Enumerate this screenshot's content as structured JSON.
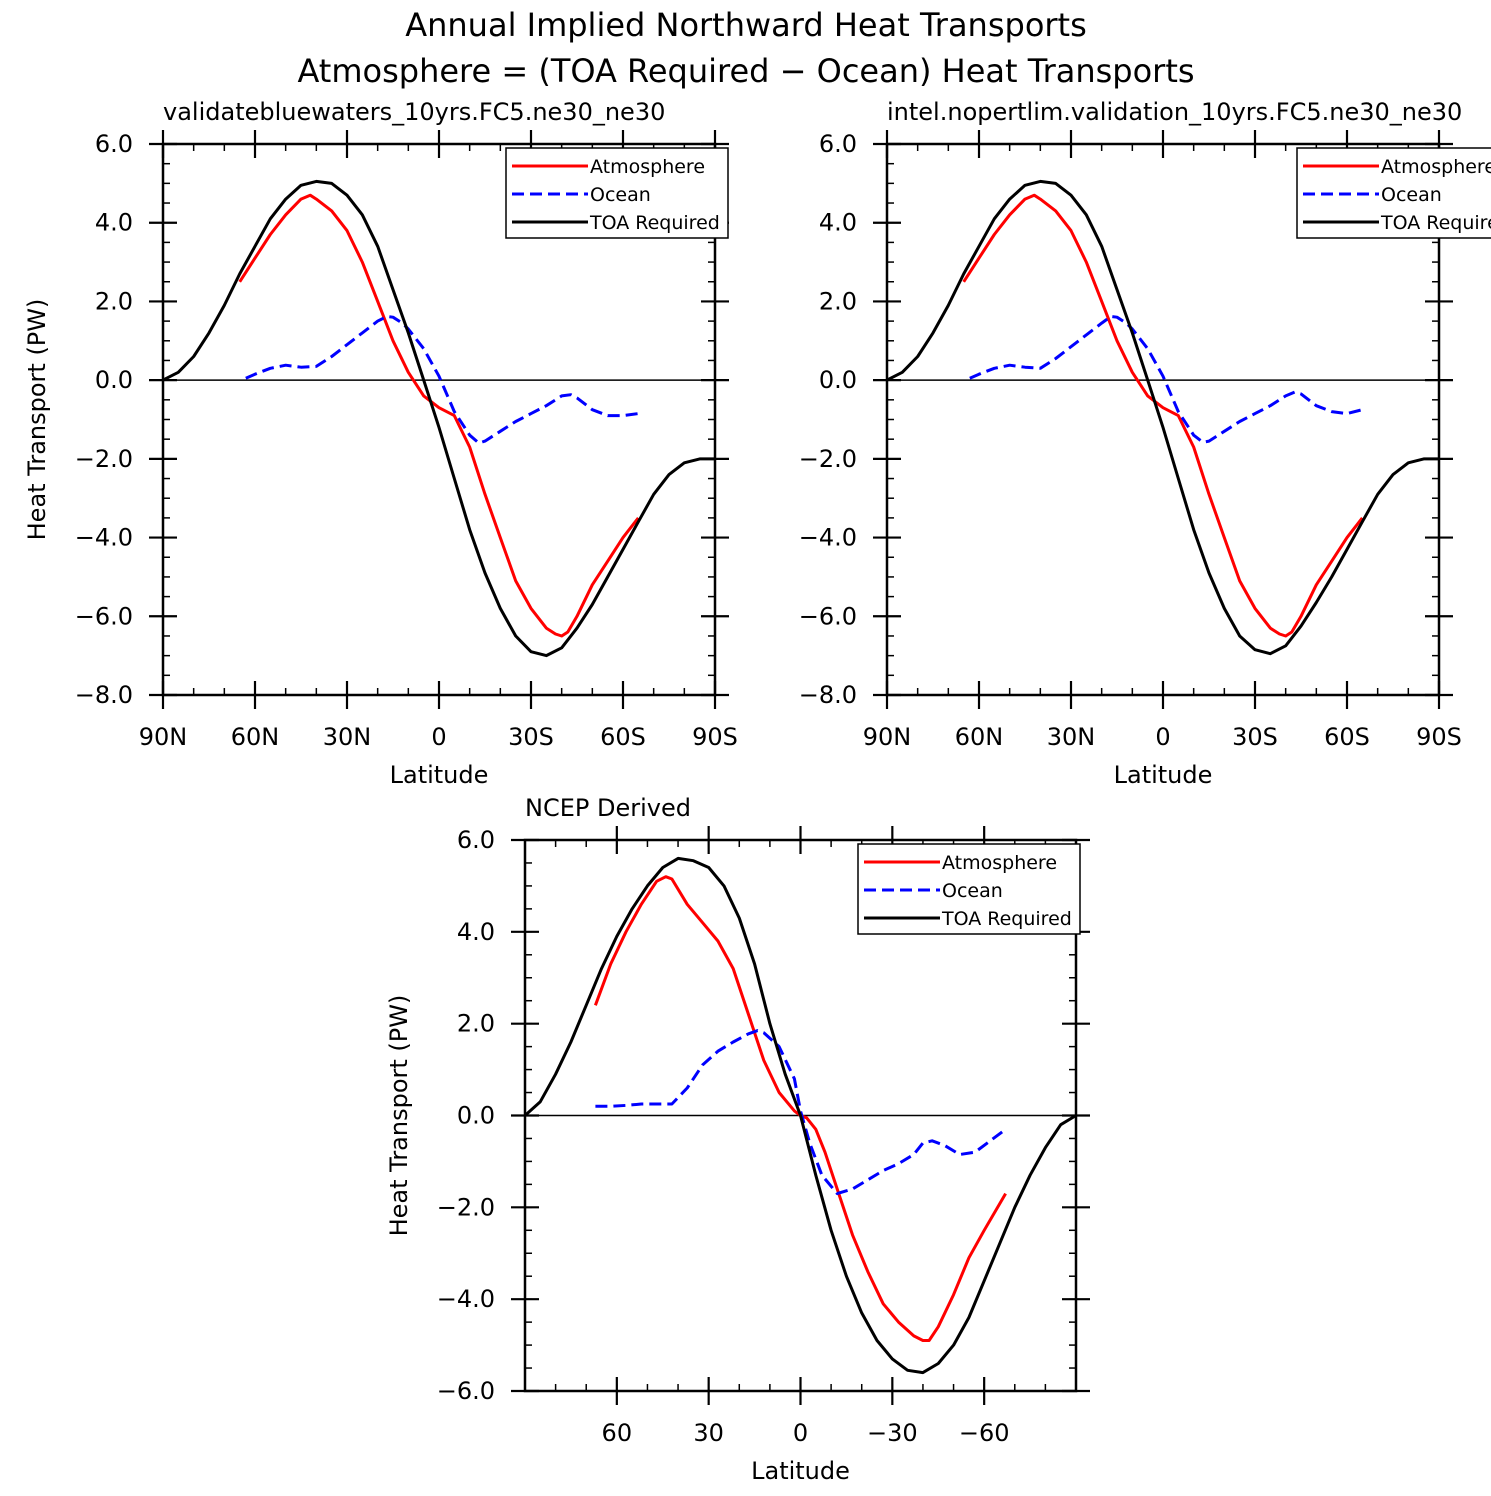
{
  "figure": {
    "title_line1": "Annual Implied Northward Heat Transports",
    "title_line2": "Atmosphere = (TOA Required − Ocean) Heat Transports"
  },
  "colors": {
    "atmosphere": "#ff0000",
    "ocean": "#0000ff",
    "toa": "#000000"
  },
  "chart_data": [
    {
      "type": "line",
      "title": "validatebluewaters_10yrs.FC5.ne30_ne30",
      "xlabel": "Latitude",
      "ylabel": "Heat Transport (PW)",
      "xlim": [
        90,
        -90
      ],
      "ylim": [
        -8,
        6
      ],
      "xticks": [
        90,
        60,
        30,
        0,
        -30,
        -60,
        -90
      ],
      "xtick_labels": [
        "90N",
        "60N",
        "30N",
        "0",
        "30S",
        "60S",
        "90S"
      ],
      "yticks": [
        6,
        4,
        2,
        0,
        -2,
        -4,
        -6,
        -8
      ],
      "ytick_labels": [
        "6.0",
        "4.0",
        "2.0",
        "0.0",
        "−2.0",
        "−4.0",
        "−6.0",
        "−8.0"
      ],
      "legend": [
        "Atmosphere",
        "Ocean",
        "TOA Required"
      ],
      "series": [
        {
          "name": "Atmosphere",
          "x": [
            65,
            60,
            55,
            50,
            45,
            42,
            40,
            35,
            30,
            25,
            20,
            15,
            10,
            5,
            0,
            -5,
            -10,
            -15,
            -20,
            -25,
            -30,
            -35,
            -38,
            -40,
            -42,
            -45,
            -50,
            -55,
            -60,
            -65
          ],
          "y": [
            2.5,
            3.1,
            3.7,
            4.2,
            4.6,
            4.7,
            4.6,
            4.3,
            3.8,
            3.0,
            2.0,
            1.0,
            0.2,
            -0.4,
            -0.7,
            -0.9,
            -1.7,
            -2.9,
            -4.0,
            -5.1,
            -5.8,
            -6.3,
            -6.45,
            -6.5,
            -6.4,
            -6.0,
            -5.2,
            -4.6,
            -4.0,
            -3.5
          ]
        },
        {
          "name": "Ocean",
          "x": [
            63,
            60,
            55,
            50,
            45,
            40,
            35,
            30,
            25,
            20,
            17,
            15,
            12,
            10,
            5,
            0,
            -5,
            -10,
            -13,
            -15,
            -20,
            -25,
            -30,
            -35,
            -40,
            -43,
            -45,
            -50,
            -55,
            -60,
            -65
          ],
          "y": [
            0.05,
            0.15,
            0.3,
            0.38,
            0.33,
            0.35,
            0.6,
            0.9,
            1.2,
            1.5,
            1.62,
            1.6,
            1.45,
            1.3,
            0.8,
            0.1,
            -0.8,
            -1.4,
            -1.6,
            -1.55,
            -1.3,
            -1.05,
            -0.85,
            -0.65,
            -0.4,
            -0.37,
            -0.45,
            -0.75,
            -0.9,
            -0.9,
            -0.85
          ]
        },
        {
          "name": "TOA Required",
          "x": [
            90,
            85,
            80,
            75,
            70,
            65,
            60,
            55,
            50,
            45,
            40,
            35,
            30,
            25,
            20,
            15,
            10,
            5,
            0,
            -5,
            -10,
            -15,
            -20,
            -25,
            -30,
            -35,
            -40,
            -45,
            -50,
            -55,
            -60,
            -65,
            -70,
            -75,
            -80,
            -85,
            -90
          ],
          "y": [
            0.0,
            0.2,
            0.6,
            1.2,
            1.9,
            2.7,
            3.4,
            4.1,
            4.6,
            4.95,
            5.05,
            5.0,
            4.7,
            4.2,
            3.4,
            2.3,
            1.2,
            0.0,
            -1.2,
            -2.5,
            -3.8,
            -4.9,
            -5.8,
            -6.5,
            -6.9,
            -7.0,
            -6.8,
            -6.3,
            -5.7,
            -5.0,
            -4.3,
            -3.6,
            -2.9,
            -2.4,
            -2.1,
            -2.0,
            -2.0
          ]
        }
      ]
    },
    {
      "type": "line",
      "title": "intel.nopertlim.validation_10yrs.FC5.ne30_ne30",
      "xlabel": "Latitude",
      "ylabel": "",
      "xlim": [
        90,
        -90
      ],
      "ylim": [
        -8,
        6
      ],
      "xticks": [
        90,
        60,
        30,
        0,
        -30,
        -60,
        -90
      ],
      "xtick_labels": [
        "90N",
        "60N",
        "30N",
        "0",
        "30S",
        "60S",
        "90S"
      ],
      "yticks": [
        6,
        4,
        2,
        0,
        -2,
        -4,
        -6,
        -8
      ],
      "ytick_labels": [
        "6.0",
        "4.0",
        "2.0",
        "0.0",
        "−2.0",
        "−4.0",
        "−6.0",
        "−8.0"
      ],
      "legend": [
        "Atmosphere",
        "Ocean",
        "TOA Required"
      ],
      "series": [
        {
          "name": "Atmosphere",
          "x": [
            65,
            60,
            55,
            50,
            45,
            42,
            40,
            35,
            30,
            25,
            20,
            15,
            10,
            5,
            0,
            -5,
            -10,
            -15,
            -20,
            -25,
            -30,
            -35,
            -38,
            -40,
            -42,
            -45,
            -50,
            -55,
            -60,
            -65
          ],
          "y": [
            2.5,
            3.1,
            3.7,
            4.2,
            4.6,
            4.7,
            4.6,
            4.3,
            3.8,
            3.0,
            2.0,
            1.0,
            0.2,
            -0.4,
            -0.7,
            -0.9,
            -1.7,
            -2.9,
            -4.0,
            -5.1,
            -5.8,
            -6.3,
            -6.45,
            -6.5,
            -6.4,
            -6.0,
            -5.2,
            -4.6,
            -4.0,
            -3.5
          ]
        },
        {
          "name": "Ocean",
          "x": [
            63,
            60,
            55,
            50,
            45,
            40,
            35,
            30,
            25,
            20,
            17,
            15,
            12,
            10,
            5,
            0,
            -5,
            -10,
            -13,
            -15,
            -20,
            -25,
            -30,
            -35,
            -40,
            -43,
            -45,
            -50,
            -55,
            -60,
            -65
          ],
          "y": [
            0.05,
            0.15,
            0.3,
            0.38,
            0.33,
            0.3,
            0.55,
            0.85,
            1.15,
            1.45,
            1.62,
            1.6,
            1.45,
            1.3,
            0.8,
            0.1,
            -0.8,
            -1.4,
            -1.58,
            -1.55,
            -1.3,
            -1.05,
            -0.85,
            -0.65,
            -0.4,
            -0.3,
            -0.35,
            -0.65,
            -0.8,
            -0.85,
            -0.75
          ]
        },
        {
          "name": "TOA Required",
          "x": [
            90,
            85,
            80,
            75,
            70,
            65,
            60,
            55,
            50,
            45,
            40,
            35,
            30,
            25,
            20,
            15,
            10,
            5,
            0,
            -5,
            -10,
            -15,
            -20,
            -25,
            -30,
            -35,
            -40,
            -45,
            -50,
            -55,
            -60,
            -65,
            -70,
            -75,
            -80,
            -85,
            -90
          ],
          "y": [
            0.0,
            0.2,
            0.6,
            1.2,
            1.9,
            2.7,
            3.4,
            4.1,
            4.6,
            4.95,
            5.05,
            5.0,
            4.7,
            4.2,
            3.4,
            2.3,
            1.2,
            0.0,
            -1.2,
            -2.5,
            -3.8,
            -4.9,
            -5.8,
            -6.5,
            -6.85,
            -6.95,
            -6.75,
            -6.25,
            -5.65,
            -5.0,
            -4.3,
            -3.6,
            -2.9,
            -2.4,
            -2.1,
            -2.0,
            -2.0
          ]
        }
      ]
    },
    {
      "type": "line",
      "title": "NCEP Derived",
      "xlabel": "Latitude",
      "ylabel": "Heat Transport (PW)",
      "xlim": [
        90,
        -90
      ],
      "ylim": [
        -6,
        6
      ],
      "xticks": [
        60,
        30,
        0,
        -30,
        -60
      ],
      "xtick_labels": [
        "60",
        "30",
        "0",
        "−30",
        "−60"
      ],
      "yticks": [
        6,
        4,
        2,
        0,
        -2,
        -4,
        -6
      ],
      "ytick_labels": [
        "6.0",
        "4.0",
        "2.0",
        "0.0",
        "−2.0",
        "−4.0",
        "−6.0"
      ],
      "legend": [
        "Atmosphere",
        "Ocean",
        "TOA Required"
      ],
      "series": [
        {
          "name": "Atmosphere",
          "x": [
            67,
            62,
            57,
            52,
            47,
            44,
            42,
            37,
            32,
            27,
            22,
            17,
            12,
            7,
            2,
            0,
            -2,
            -5,
            -8,
            -12,
            -17,
            -22,
            -27,
            -32,
            -37,
            -40,
            -42,
            -45,
            -50,
            -55,
            -60,
            -67
          ],
          "y": [
            2.4,
            3.3,
            4.0,
            4.6,
            5.1,
            5.2,
            5.15,
            4.6,
            4.2,
            3.8,
            3.2,
            2.2,
            1.2,
            0.5,
            0.1,
            0.0,
            -0.05,
            -0.3,
            -0.8,
            -1.6,
            -2.6,
            -3.4,
            -4.1,
            -4.5,
            -4.8,
            -4.9,
            -4.9,
            -4.6,
            -3.9,
            -3.1,
            -2.5,
            -1.7
          ]
        },
        {
          "name": "Ocean",
          "x": [
            67,
            62,
            57,
            52,
            47,
            42,
            37,
            32,
            27,
            22,
            17,
            14,
            12,
            7,
            2,
            0,
            -3,
            -7,
            -12,
            -17,
            -22,
            -27,
            -32,
            -37,
            -40,
            -43,
            -47,
            -52,
            -57,
            -62,
            -67
          ],
          "y": [
            0.2,
            0.2,
            0.22,
            0.25,
            0.25,
            0.25,
            0.6,
            1.1,
            1.4,
            1.6,
            1.78,
            1.85,
            1.8,
            1.5,
            0.8,
            0.1,
            -0.6,
            -1.3,
            -1.7,
            -1.6,
            -1.4,
            -1.2,
            -1.05,
            -0.85,
            -0.6,
            -0.55,
            -0.65,
            -0.85,
            -0.8,
            -0.55,
            -0.3
          ]
        },
        {
          "name": "TOA Required",
          "x": [
            90,
            85,
            80,
            75,
            70,
            65,
            60,
            55,
            50,
            45,
            40,
            35,
            30,
            25,
            20,
            15,
            10,
            5,
            0,
            -5,
            -10,
            -15,
            -20,
            -25,
            -30,
            -35,
            -40,
            -45,
            -50,
            -55,
            -60,
            -65,
            -70,
            -75,
            -80,
            -85,
            -90
          ],
          "y": [
            0.0,
            0.3,
            0.9,
            1.6,
            2.4,
            3.2,
            3.9,
            4.5,
            5.0,
            5.4,
            5.6,
            5.55,
            5.4,
            5.0,
            4.3,
            3.3,
            2.0,
            0.9,
            0.0,
            -1.3,
            -2.5,
            -3.5,
            -4.3,
            -4.9,
            -5.3,
            -5.55,
            -5.6,
            -5.4,
            -5.0,
            -4.4,
            -3.6,
            -2.8,
            -2.0,
            -1.3,
            -0.7,
            -0.2,
            0.0
          ]
        }
      ]
    }
  ]
}
